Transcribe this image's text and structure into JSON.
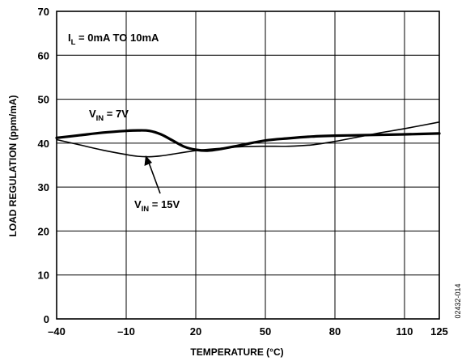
{
  "chart_data": {
    "type": "line",
    "xlabel": "TEMPERATURE (°C)",
    "ylabel": "LOAD REGULATION (ppm/mA)",
    "xlim": [
      -40,
      125
    ],
    "ylim": [
      0,
      70
    ],
    "x_ticks": [
      -40,
      -10,
      20,
      50,
      80,
      110,
      125
    ],
    "x_tick_labels": [
      "–40",
      "–10",
      "20",
      "50",
      "80",
      "110",
      "125"
    ],
    "y_ticks": [
      0,
      10,
      20,
      30,
      40,
      50,
      60,
      70
    ],
    "y_tick_labels": [
      "0",
      "10",
      "20",
      "30",
      "40",
      "50",
      "60",
      "70"
    ],
    "grid": true,
    "series": [
      {
        "name": "V_IN = 7V",
        "x": [
          -40,
          -30,
          -20,
          -10,
          -5,
          0,
          5,
          10,
          15,
          20,
          25,
          30,
          40,
          50,
          60,
          70,
          80,
          90,
          100,
          110,
          125
        ],
        "y": [
          41.2,
          41.8,
          42.4,
          42.8,
          42.9,
          42.8,
          42.0,
          40.6,
          39.2,
          38.5,
          38.3,
          38.6,
          39.6,
          40.6,
          41.1,
          41.5,
          41.7,
          41.8,
          41.9,
          42.0,
          42.2
        ]
      },
      {
        "name": "V_IN = 15V",
        "x": [
          -40,
          -30,
          -20,
          -10,
          -5,
          0,
          5,
          10,
          20,
          30,
          40,
          50,
          60,
          70,
          80,
          90,
          100,
          110,
          125
        ],
        "y": [
          40.8,
          39.6,
          38.4,
          37.4,
          37.0,
          36.9,
          37.1,
          37.5,
          38.3,
          38.8,
          39.2,
          39.3,
          39.3,
          39.6,
          40.4,
          41.4,
          42.4,
          43.3,
          44.8
        ]
      }
    ],
    "annotations": {
      "condition": {
        "main": "I",
        "sub": "L",
        "rest": " = 0mA TO 10mA"
      },
      "label_7v": {
        "main": "V",
        "sub": "IN",
        "rest": " = 7V"
      },
      "label_15v": {
        "main": "V",
        "sub": "IN",
        "rest": " = 15V"
      }
    },
    "figure_id": "02432-014"
  }
}
